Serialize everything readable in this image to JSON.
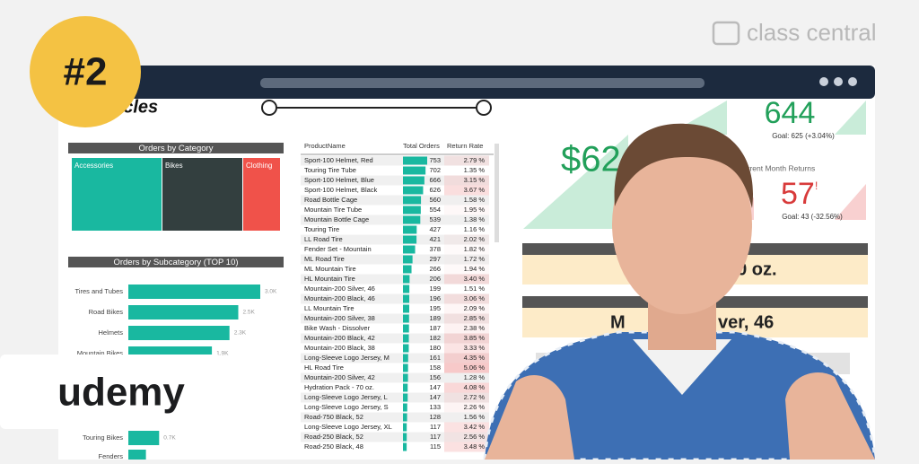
{
  "badge": "#2",
  "brand": "class central",
  "udemy": "udemy",
  "logo": "cycles",
  "category": {
    "title": "Orders by Category",
    "tiles": [
      "Accessories",
      "Bikes",
      "Clothing"
    ]
  },
  "subcategory": {
    "title": "Orders by Subcategory (TOP 10)",
    "categories": [
      "Tires and Tubes",
      "Road Bikes",
      "Helmets",
      "Mountain Bikes",
      "Touring Bikes",
      "Fenders"
    ],
    "values": [
      3000,
      2500,
      2300,
      1900,
      700,
      400
    ],
    "value_labels": [
      "3.0K",
      "2.5K",
      "2.3K",
      "1.9K",
      "0.7K",
      null
    ]
  },
  "table": {
    "columns": [
      "ProductName",
      "Total Orders",
      "Return Rate"
    ],
    "rows": [
      [
        "Sport-100 Helmet, Red",
        753,
        "2.79 %"
      ],
      [
        "Touring Tire Tube",
        702,
        "1.35 %"
      ],
      [
        "Sport-100 Helmet, Blue",
        666,
        "3.15 %"
      ],
      [
        "Sport-100 Helmet, Black",
        626,
        "3.67 %"
      ],
      [
        "Road Bottle Cage",
        560,
        "1.58 %"
      ],
      [
        "Mountain Tire Tube",
        554,
        "1.95 %"
      ],
      [
        "Mountain Bottle Cage",
        539,
        "1.38 %"
      ],
      [
        "Touring Tire",
        427,
        "1.16 %"
      ],
      [
        "LL Road Tire",
        421,
        "2.02 %"
      ],
      [
        "Fender Set - Mountain",
        378,
        "1.82 %"
      ],
      [
        "ML Road Tire",
        297,
        "1.72 %"
      ],
      [
        "ML Mountain Tire",
        266,
        "1.94 %"
      ],
      [
        "HL Mountain Tire",
        206,
        "3.40 %"
      ],
      [
        "Mountain-200 Silver, 46",
        199,
        "1.51 %"
      ],
      [
        "Mountain-200 Black, 46",
        196,
        "3.06 %"
      ],
      [
        "LL Mountain Tire",
        195,
        "2.09 %"
      ],
      [
        "Mountain-200 Silver, 38",
        189,
        "2.85 %"
      ],
      [
        "Bike Wash - Dissolver",
        187,
        "2.38 %"
      ],
      [
        "Mountain-200 Black, 42",
        182,
        "3.85 %"
      ],
      [
        "Mountain-200 Black, 38",
        180,
        "3.33 %"
      ],
      [
        "Long-Sleeve Logo Jersey, M",
        161,
        "4.35 %"
      ],
      [
        "HL Road Tire",
        158,
        "5.06 %"
      ],
      [
        "Mountain-200 Silver, 42",
        156,
        "1.28 %"
      ],
      [
        "Hydration Pack - 70 oz.",
        147,
        "4.08 %"
      ],
      [
        "Long-Sleeve Logo Jersey, L",
        147,
        "2.72 %"
      ],
      [
        "Long-Sleeve Logo Jersey, S",
        133,
        "2.26 %"
      ],
      [
        "Road-750 Black, 52",
        128,
        "1.56 %"
      ],
      [
        "Long-Sleeve Logo Jersey, XL",
        117,
        "3.42 %"
      ],
      [
        "Road-250 Black, 52",
        117,
        "2.56 %"
      ],
      [
        "Road-250 Black, 48",
        115,
        "3.48 %"
      ]
    ]
  },
  "kpi": {
    "orders": "644",
    "orders_goal": "Goal: 625 (+3.04%)",
    "revenue": "$62",
    "returns_title": "Current Month Returns",
    "returns": "57",
    "returns_flag": "!",
    "returns_goal": "Goal: 43 (-32.56%)",
    "card1": "30 oz.",
    "card2a": "M",
    "card2b": "ver, 46"
  }
}
